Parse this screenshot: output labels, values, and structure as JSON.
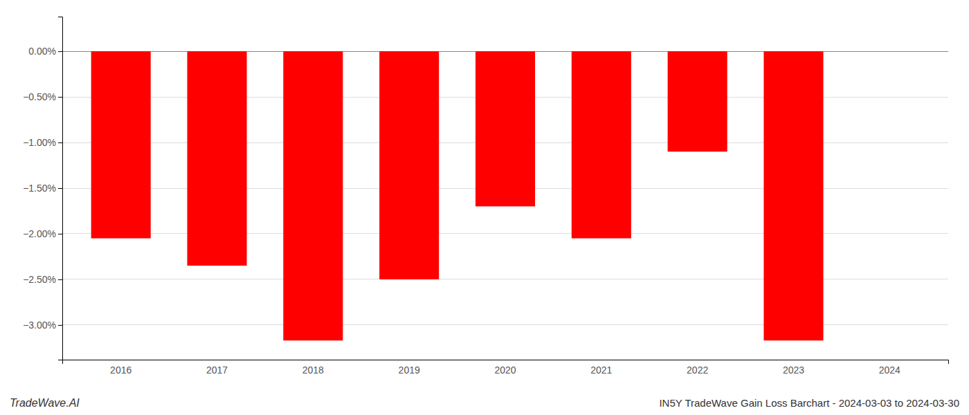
{
  "chart_data": {
    "type": "bar",
    "title": "IN5Y TradeWave Gain Loss Barchart - 2024-03-03 to 2024-03-30",
    "annotations": [
      "TradeWave.AI"
    ],
    "categories": [
      "2016",
      "2017",
      "2018",
      "2019",
      "2020",
      "2021",
      "2022",
      "2023",
      "2024"
    ],
    "values": [
      -2.05,
      -2.35,
      -3.17,
      -2.5,
      -1.7,
      -2.05,
      -1.1,
      -3.17,
      0.0
    ],
    "color": "#FF0000",
    "ylim": [
      -3.38,
      0.38
    ],
    "yticks": [
      {
        "value": 0.0,
        "label": "0.00%"
      },
      {
        "value": -0.5,
        "label": "−0.50%"
      },
      {
        "value": -1.0,
        "label": "−1.00%"
      },
      {
        "value": -1.5,
        "label": "−1.50%"
      },
      {
        "value": -2.0,
        "label": "−2.00%"
      },
      {
        "value": -2.5,
        "label": "−2.50%"
      },
      {
        "value": -3.0,
        "label": "−3.00%"
      }
    ],
    "grid": true
  }
}
